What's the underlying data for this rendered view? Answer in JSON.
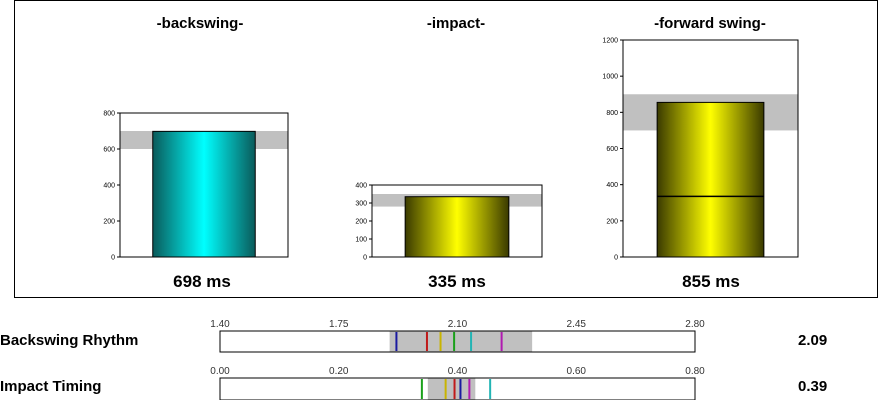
{
  "chart_data": [
    {
      "type": "bar",
      "title": "-backswing-",
      "categories": [
        ""
      ],
      "values": [
        698
      ],
      "reference_band": [
        600,
        700
      ],
      "ylim": [
        0,
        800
      ],
      "yticks": [
        0,
        200,
        400,
        600,
        800
      ],
      "value_label": "698 ms",
      "bar_colors": [
        "#0a5a5a",
        "#00ffff"
      ]
    },
    {
      "type": "bar",
      "title": "-impact-",
      "categories": [
        ""
      ],
      "values": [
        335
      ],
      "reference_band": [
        280,
        350
      ],
      "ylim": [
        0,
        400
      ],
      "yticks": [
        0,
        100,
        200,
        300,
        400
      ],
      "value_label": "335 ms",
      "bar_colors": [
        "#3a3a00",
        "#ffff00"
      ]
    },
    {
      "type": "bar",
      "title": "-forward swing-",
      "categories": [
        ""
      ],
      "values": [
        855
      ],
      "segment_line": 335,
      "reference_band": [
        700,
        900
      ],
      "ylim": [
        0,
        1200
      ],
      "yticks": [
        0,
        200,
        400,
        600,
        800,
        1000,
        1200
      ],
      "value_label": "855 ms",
      "bar_colors": [
        "#3a3a00",
        "#ffff00"
      ]
    }
  ],
  "rows": [
    {
      "label": "Backswing Rhythm",
      "value": "2.09",
      "range": [
        1.4,
        2.8
      ],
      "ticks": [
        "1.40",
        "1.75",
        "2.10",
        "2.45",
        "2.80"
      ],
      "band": [
        1.9,
        2.32
      ],
      "markers": [
        {
          "value": 1.92,
          "color": "#1a1aa0"
        },
        {
          "value": 2.01,
          "color": "#c01a1a"
        },
        {
          "value": 2.05,
          "color": "#c8b400"
        },
        {
          "value": 2.09,
          "color": "#1aa01a"
        },
        {
          "value": 2.14,
          "color": "#22b4b4"
        },
        {
          "value": 2.23,
          "color": "#b01ab0"
        }
      ]
    },
    {
      "label": "Impact Timing",
      "value": "0.39",
      "range": [
        0.0,
        0.8
      ],
      "ticks": [
        "0.00",
        "0.20",
        "0.40",
        "0.60",
        "0.80"
      ],
      "band": [
        0.35,
        0.43
      ],
      "markers": [
        {
          "value": 0.34,
          "color": "#1aa01a"
        },
        {
          "value": 0.38,
          "color": "#c8b400"
        },
        {
          "value": 0.395,
          "color": "#c01a1a"
        },
        {
          "value": 0.405,
          "color": "#1a1aa0"
        },
        {
          "value": 0.42,
          "color": "#b01ab0"
        },
        {
          "value": 0.455,
          "color": "#22b4b4"
        }
      ]
    }
  ]
}
